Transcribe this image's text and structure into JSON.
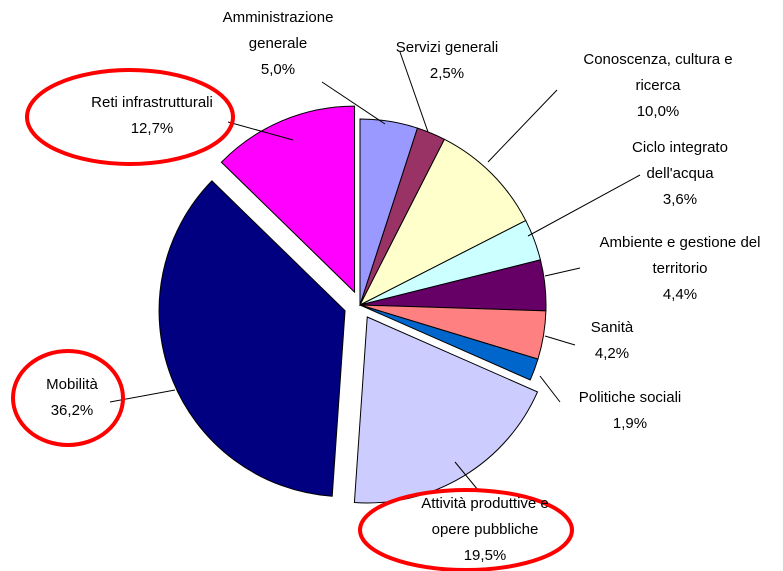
{
  "chart_data": {
    "type": "pie",
    "categories": [
      "Amministrazione generale",
      "Servizi generali",
      "Conoscenza, cultura e ricerca",
      "Ciclo integrato dell'acqua",
      "Ambiente e gestione del territorio",
      "Sanità",
      "Politiche sociali",
      "Attività produttive e opere pubbliche",
      "Mobilità",
      "Reti infrastrutturali"
    ],
    "values": [
      5.0,
      2.5,
      10.0,
      3.6,
      4.4,
      4.2,
      1.9,
      19.5,
      36.2,
      12.7
    ],
    "value_labels": [
      "5,0%",
      "2,5%",
      "10,0%",
      "3,6%",
      "4,4%",
      "4,2%",
      "1,9%",
      "19,5%",
      "36,2%",
      "12,7%"
    ],
    "colors": [
      "#9999ff",
      "#993366",
      "#ffffcc",
      "#ccffff",
      "#660066",
      "#ff8080",
      "#0066cc",
      "#ccccff",
      "#000080",
      "#ff00ff"
    ]
  }
}
